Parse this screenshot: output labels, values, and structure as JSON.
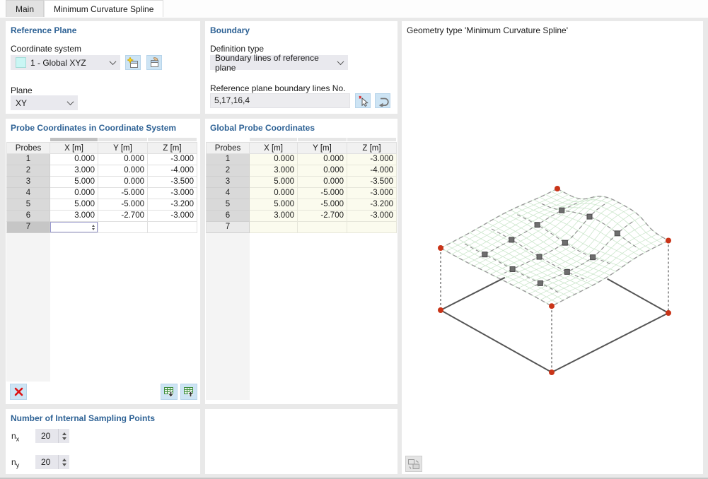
{
  "window": {
    "tabs": [
      {
        "label": "Main"
      },
      {
        "label": "Minimum Curvature Spline"
      }
    ],
    "active_tab": 1
  },
  "reference_plane": {
    "title": "Reference Plane",
    "coordinate_system_label": "Coordinate system",
    "coordinate_system_value": "1 - Global XYZ",
    "plane_label": "Plane",
    "plane_value": "XY"
  },
  "boundary": {
    "title": "Boundary",
    "definition_type_label": "Definition type",
    "definition_type_value": "Boundary lines of reference plane",
    "lines_label": "Reference plane boundary lines No.",
    "lines_value": "5,17,16,4"
  },
  "probe_table": {
    "title": "Probe Coordinates in Coordinate System",
    "columns": [
      "Probes",
      "X [m]",
      "Y [m]",
      "Z [m]"
    ],
    "rows": [
      {
        "n": "1",
        "x": "0.000",
        "y": "0.000",
        "z": "-3.000"
      },
      {
        "n": "2",
        "x": "3.000",
        "y": "0.000",
        "z": "-4.000"
      },
      {
        "n": "3",
        "x": "5.000",
        "y": "0.000",
        "z": "-3.500"
      },
      {
        "n": "4",
        "x": "0.000",
        "y": "-5.000",
        "z": "-3.000"
      },
      {
        "n": "5",
        "x": "5.000",
        "y": "-5.000",
        "z": "-3.200"
      },
      {
        "n": "6",
        "x": "3.000",
        "y": "-2.700",
        "z": "-3.000"
      }
    ],
    "next_row_number": "7",
    "next_row_x_value": ""
  },
  "global_table": {
    "title": "Global Probe Coordinates",
    "columns": [
      "Probes",
      "X [m]",
      "Y [m]",
      "Z [m]"
    ],
    "rows": [
      {
        "n": "1",
        "x": "0.000",
        "y": "0.000",
        "z": "-3.000"
      },
      {
        "n": "2",
        "x": "3.000",
        "y": "0.000",
        "z": "-4.000"
      },
      {
        "n": "3",
        "x": "5.000",
        "y": "0.000",
        "z": "-3.500"
      },
      {
        "n": "4",
        "x": "0.000",
        "y": "-5.000",
        "z": "-3.000"
      },
      {
        "n": "5",
        "x": "5.000",
        "y": "-5.000",
        "z": "-3.200"
      },
      {
        "n": "6",
        "x": "3.000",
        "y": "-2.700",
        "z": "-3.000"
      }
    ],
    "next_row_number": "7"
  },
  "sampling": {
    "title": "Number of Internal Sampling Points",
    "fields": [
      {
        "label": "n",
        "sub": "x",
        "value": "20"
      },
      {
        "label": "n",
        "sub": "y",
        "value": "20"
      }
    ]
  },
  "viewport": {
    "title": "Geometry type 'Minimum Curvature Spline'"
  },
  "icons": {
    "new_coordinate_system": "window-with-star",
    "edit_coordinate_system": "window-with-hand",
    "pick_lines": "cursor-with-red-x",
    "reset_lines": "u-turn-arrow",
    "delete_row": "red-x",
    "export_table": "spreadsheet-arrow-down",
    "import_table": "spreadsheet-arrow-up",
    "view_toggle": "two-frames-swap"
  },
  "colors": {
    "section_title": "#2e6295",
    "button_blue": "#cde4f4",
    "swatch_cyan": "#c9f6f4",
    "probe_point_red": "#c93418",
    "mesh_green": "#cde7cd",
    "control_point_gray": "#6e6e6e",
    "readonly_cell": "#fbfbee",
    "app_background": "#e9e9e9"
  }
}
